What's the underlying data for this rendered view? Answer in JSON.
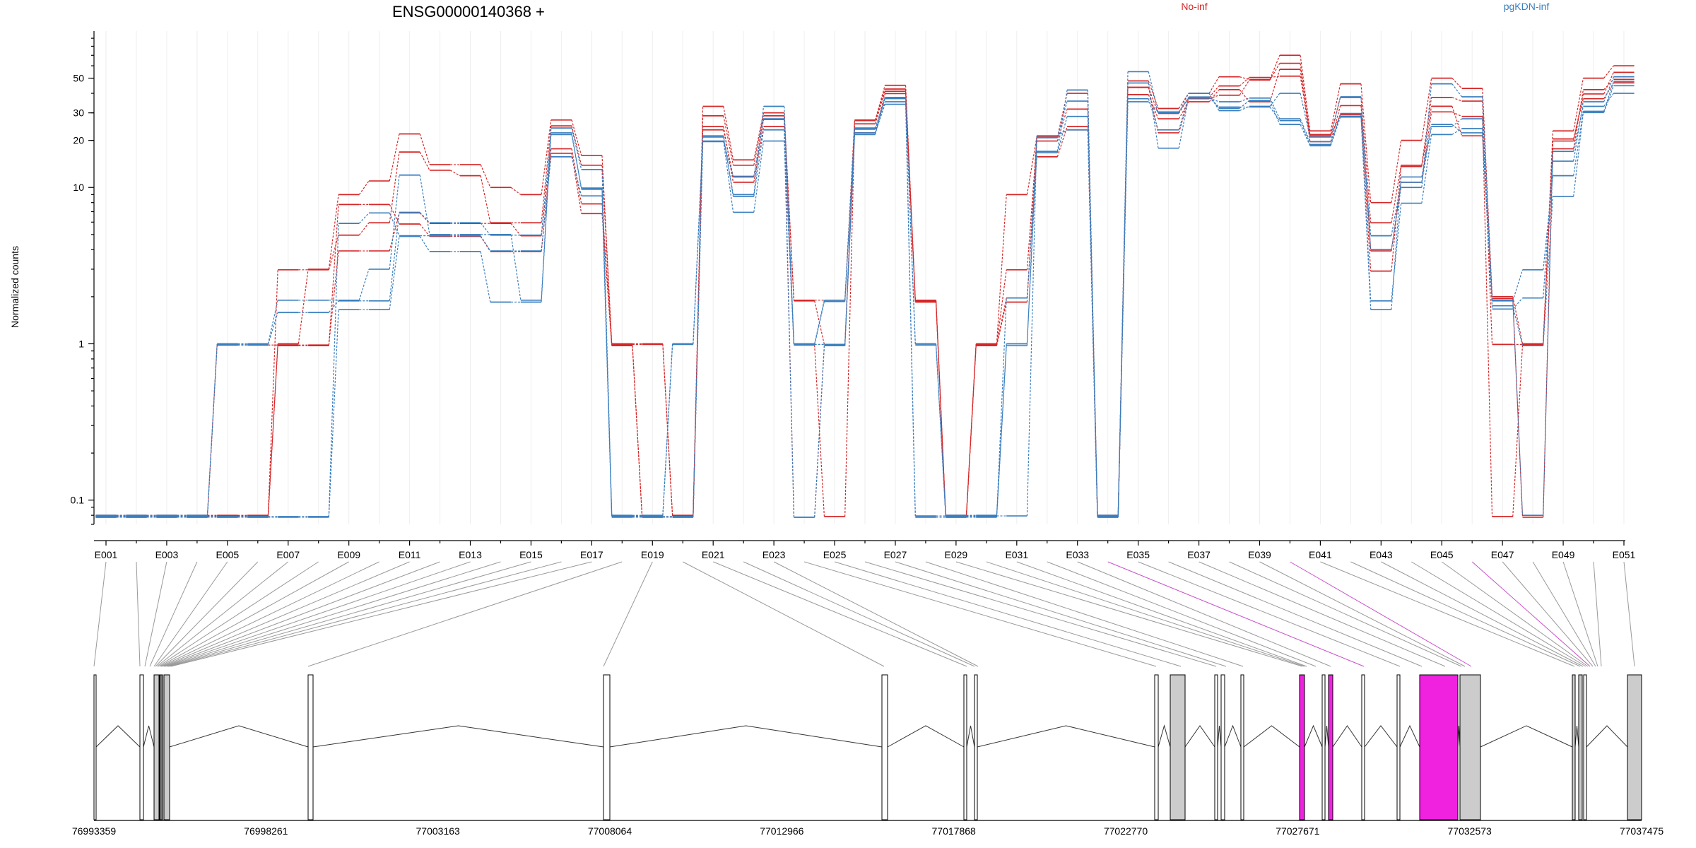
{
  "chart_data": {
    "type": "line",
    "title": "ENSG00000140368 +",
    "ylabel": "Normalized counts",
    "yscale": "log",
    "ylim": [
      0.07,
      100
    ],
    "yticks": [
      0.1,
      1,
      10,
      20,
      30,
      50
    ],
    "yticks_labels": [
      "0.1",
      "1",
      "10",
      "20",
      "30",
      "50"
    ],
    "legend_placement": "top-right",
    "categories": [
      "E001",
      "E002",
      "E003",
      "E004",
      "E005",
      "E006",
      "E007",
      "E008",
      "E009",
      "E010",
      "E011",
      "E012",
      "E013",
      "E014",
      "E015",
      "E016",
      "E017",
      "E018",
      "E019",
      "E020",
      "E021",
      "E022",
      "E023",
      "E024",
      "E025",
      "E026",
      "E027",
      "E028",
      "E029",
      "E030",
      "E031",
      "E032",
      "E033",
      "E034",
      "E035",
      "E036",
      "E037",
      "E038",
      "E039",
      "E040",
      "E041",
      "E042",
      "E043",
      "E044",
      "E045",
      "E046",
      "E047",
      "E048",
      "E049",
      "E050",
      "E051"
    ],
    "xtick_labels": [
      "E001",
      "E003",
      "E005",
      "E007",
      "E009",
      "E011",
      "E013",
      "E015",
      "E017",
      "E019",
      "E021",
      "E023",
      "E025",
      "E027",
      "E029",
      "E031",
      "E033",
      "E035",
      "E037",
      "E039",
      "E041",
      "E043",
      "E045",
      "E047",
      "E049",
      "E051"
    ],
    "groups": [
      {
        "label": "No-inf",
        "color": "#d62728"
      },
      {
        "label": "pgKDN-inf",
        "color": "#3a7fbf"
      }
    ],
    "series": [
      {
        "group": 0,
        "values": [
          0.08,
          0.08,
          0.08,
          0.08,
          0.08,
          0.08,
          1,
          3,
          9,
          11,
          22,
          14,
          14,
          10,
          9,
          27,
          16,
          1,
          1,
          0.08,
          33,
          15,
          30,
          1.9,
          1.9,
          27,
          45,
          1.9,
          0.08,
          1,
          9,
          21,
          40,
          0.08,
          48,
          32,
          40,
          51,
          49,
          70,
          23,
          46,
          8,
          20,
          50,
          43,
          2,
          1,
          23,
          50,
          60
        ]
      },
      {
        "group": 0,
        "values": [
          0.08,
          0.08,
          0.08,
          0.08,
          0.08,
          0.08,
          3,
          3,
          5,
          6,
          17,
          13,
          12,
          6,
          6,
          25,
          14,
          1,
          1,
          0.08,
          29,
          14,
          29,
          1.9,
          1,
          27,
          43,
          1.9,
          0.08,
          1,
          3,
          20,
          32,
          0.08,
          44,
          30,
          38,
          45,
          51,
          52,
          22,
          38,
          6,
          14,
          38,
          36,
          1,
          1,
          20,
          40,
          55
        ]
      },
      {
        "group": 0,
        "values": [
          0.08,
          0.08,
          0.08,
          0.08,
          1,
          1,
          1,
          1,
          4,
          4,
          7,
          6,
          6,
          6,
          5,
          18,
          8,
          1,
          0.08,
          0.08,
          25,
          11,
          25,
          1,
          0.08,
          26,
          42,
          1.9,
          0.08,
          1,
          2,
          16,
          25,
          0.08,
          40,
          28,
          36,
          43,
          36,
          58,
          20,
          34,
          4,
          11,
          31,
          29,
          0.08,
          1,
          18,
          43,
          50
        ]
      },
      {
        "group": 0,
        "values": [
          0.08,
          0.08,
          0.08,
          0.08,
          0.08,
          0.08,
          1,
          1,
          8,
          8,
          6,
          5,
          5,
          4,
          4,
          17,
          7,
          1,
          0.08,
          0.08,
          24,
          12,
          28,
          0.08,
          1,
          23,
          41,
          1.9,
          0.08,
          1,
          1.9,
          22,
          24,
          0.08,
          45,
          23,
          38,
          40,
          50,
          64,
          22,
          30,
          3,
          14,
          34,
          22,
          2,
          0.08,
          21,
          38,
          48
        ]
      },
      {
        "group": 1,
        "values": [
          0.08,
          0.08,
          0.08,
          0.08,
          1,
          1,
          1.9,
          1.9,
          1.9,
          3,
          12,
          5,
          5,
          5,
          1.9,
          24,
          13,
          0.08,
          0.08,
          1,
          21,
          9,
          33,
          1,
          1.9,
          24,
          37,
          1,
          0.08,
          0.08,
          1,
          17,
          42,
          0.08,
          55,
          30,
          40,
          31,
          33,
          40,
          21,
          38,
          4,
          10,
          46,
          38,
          1.9,
          0.08,
          17,
          33,
          40
        ]
      },
      {
        "group": 1,
        "values": [
          0.08,
          0.08,
          0.08,
          0.08,
          1,
          1,
          1.6,
          1.6,
          1.9,
          1.9,
          7,
          6,
          6,
          5,
          5,
          22,
          10,
          0.08,
          0.08,
          1,
          20,
          7,
          20,
          1,
          1,
          22,
          38,
          0.08,
          0.08,
          0.08,
          0.08,
          21,
          36,
          0.08,
          47,
          18,
          38,
          33,
          33,
          27,
          19,
          30,
          1.9,
          8,
          22,
          24,
          1.9,
          3,
          12,
          31,
          48
        ]
      },
      {
        "group": 1,
        "values": [
          0.08,
          0.08,
          0.08,
          0.08,
          0.08,
          0.08,
          0.08,
          0.08,
          6,
          7,
          5,
          5,
          5,
          4,
          4,
          16,
          9,
          0.08,
          0.08,
          0.08,
          20,
          12,
          28,
          1,
          1.9,
          24,
          36,
          1,
          0.08,
          0.08,
          2,
          17,
          29,
          0.08,
          36,
          31,
          38,
          36,
          38,
          28,
          20,
          29,
          5,
          11,
          25,
          28,
          1.7,
          2,
          15,
          36,
          52
        ]
      },
      {
        "group": 1,
        "values": [
          0.08,
          0.08,
          0.08,
          0.08,
          0.08,
          0.08,
          0.08,
          0.08,
          1.7,
          1.7,
          5,
          4,
          4,
          1.9,
          1.9,
          23,
          10,
          0.08,
          0.08,
          0.08,
          22,
          9,
          24,
          0.08,
          1,
          23,
          35,
          0.08,
          0.08,
          0.08,
          1,
          22,
          24,
          0.08,
          38,
          24,
          39,
          33,
          37,
          26,
          19,
          29,
          1.7,
          12,
          26,
          23,
          1.8,
          1,
          9,
          31,
          46
        ]
      }
    ],
    "coordinate_labels": [
      "76993359",
      "76998261",
      "77003163",
      "77008064",
      "77012966",
      "77017868",
      "77022770",
      "77027671",
      "77032573",
      "77037475"
    ]
  },
  "exon_highlight_color": "#f022e0"
}
